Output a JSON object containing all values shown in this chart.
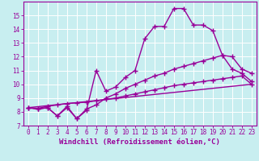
{
  "xlabel": "Windchill (Refroidissement éolien,°C)",
  "background_color": "#c8eef0",
  "line_color": "#990099",
  "grid_color": "#ffffff",
  "xlim": [
    -0.5,
    23.5
  ],
  "ylim": [
    7,
    16
  ],
  "xticks": [
    0,
    1,
    2,
    3,
    4,
    5,
    6,
    7,
    8,
    9,
    10,
    11,
    12,
    13,
    14,
    15,
    16,
    17,
    18,
    19,
    20,
    21,
    22,
    23
  ],
  "yticks": [
    7,
    8,
    9,
    10,
    11,
    12,
    13,
    14,
    15
  ],
  "curve1_x": [
    0,
    1,
    2,
    3,
    4,
    5,
    6,
    7,
    8,
    9,
    10,
    11,
    12,
    13,
    14,
    15,
    16,
    17,
    18,
    19,
    20,
    21,
    22,
    23
  ],
  "curve1_y": [
    8.3,
    8.2,
    8.3,
    7.7,
    8.3,
    7.5,
    8.1,
    11.0,
    9.5,
    9.8,
    10.5,
    11.0,
    13.3,
    14.2,
    14.2,
    15.5,
    15.5,
    14.3,
    14.3,
    13.9,
    12.1,
    12.0,
    11.1,
    10.8
  ],
  "curve2_x": [
    0,
    1,
    2,
    3,
    4,
    5,
    6,
    7,
    8,
    9,
    10,
    11,
    12,
    13,
    14,
    15,
    16,
    17,
    18,
    19,
    20,
    21,
    22,
    23
  ],
  "curve2_y": [
    8.3,
    8.2,
    8.3,
    7.7,
    8.4,
    7.5,
    8.2,
    8.5,
    9.0,
    9.3,
    9.7,
    10.0,
    10.3,
    10.6,
    10.8,
    11.1,
    11.3,
    11.5,
    11.7,
    11.9,
    12.1,
    11.1,
    10.8,
    10.2
  ],
  "curve3_x": [
    0,
    1,
    2,
    3,
    4,
    5,
    6,
    7,
    8,
    9,
    10,
    11,
    12,
    13,
    14,
    15,
    16,
    17,
    18,
    19,
    20,
    21,
    22,
    23
  ],
  "curve3_y": [
    8.3,
    8.25,
    8.4,
    8.5,
    8.6,
    8.65,
    8.7,
    8.8,
    8.9,
    9.0,
    9.15,
    9.3,
    9.45,
    9.6,
    9.75,
    9.9,
    10.0,
    10.1,
    10.2,
    10.3,
    10.4,
    10.5,
    10.6,
    10.0
  ],
  "curve4_x": [
    0,
    23
  ],
  "curve4_y": [
    8.3,
    10.0
  ],
  "marker": "+",
  "marker_size": 4,
  "line_width": 1.0,
  "xlabel_fontsize": 6.5,
  "tick_fontsize": 5.5
}
